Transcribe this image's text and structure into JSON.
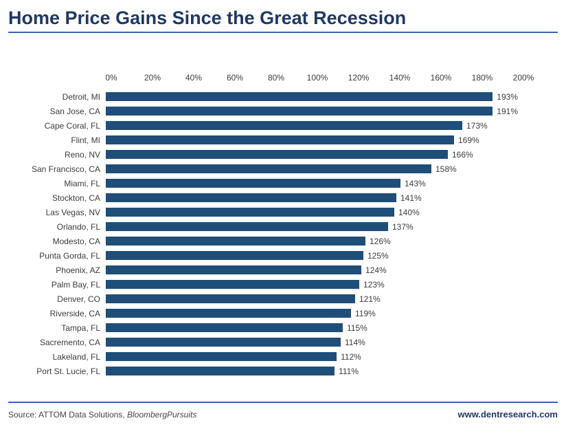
{
  "title": "Home Price Gains Since the Great Recession",
  "colors": {
    "title": "#1F3864",
    "bar": "#1F4E79",
    "divider": "#3A62A7"
  },
  "footer": {
    "source_prefix": "Source: ATTOM Data Solutions, ",
    "source_italic": "BloombergPursuits",
    "website": "www.dentresearch.com"
  },
  "chart_data": {
    "type": "bar",
    "orientation": "horizontal",
    "title": "Home Price Gains Since the Great Recession",
    "xlabel": "",
    "ylabel": "",
    "xlim": [
      0,
      200
    ],
    "x_ticks": [
      "0%",
      "20%",
      "40%",
      "60%",
      "80%",
      "100%",
      "120%",
      "140%",
      "160%",
      "180%",
      "200%"
    ],
    "grid": false,
    "legend": false,
    "categories": [
      "Detroit, MI",
      "San Jose, CA",
      "Cape Coral, FL",
      "Flint, MI",
      "Reno, NV",
      "San Francisco, CA",
      "Miami, FL",
      "Stockton, CA",
      "Las Vegas, NV",
      "Orlando, FL",
      "Modesto, CA",
      "Punta Gorda, FL",
      "Phoenix, AZ",
      "Palm Bay, FL",
      "Denver, CO",
      "Riverside, CA",
      "Tampa, FL",
      "Sacremento, CA",
      "Lakeland, FL",
      "Port St. Lucie, FL"
    ],
    "values": [
      193,
      191,
      173,
      169,
      166,
      158,
      143,
      141,
      140,
      137,
      126,
      125,
      124,
      123,
      121,
      119,
      115,
      114,
      112,
      111
    ],
    "value_labels": [
      "193%",
      "191%",
      "173%",
      "169%",
      "166%",
      "158%",
      "143%",
      "141%",
      "140%",
      "137%",
      "126%",
      "125%",
      "124%",
      "123%",
      "121%",
      "119%",
      "115%",
      "114%",
      "112%",
      "111%"
    ]
  }
}
